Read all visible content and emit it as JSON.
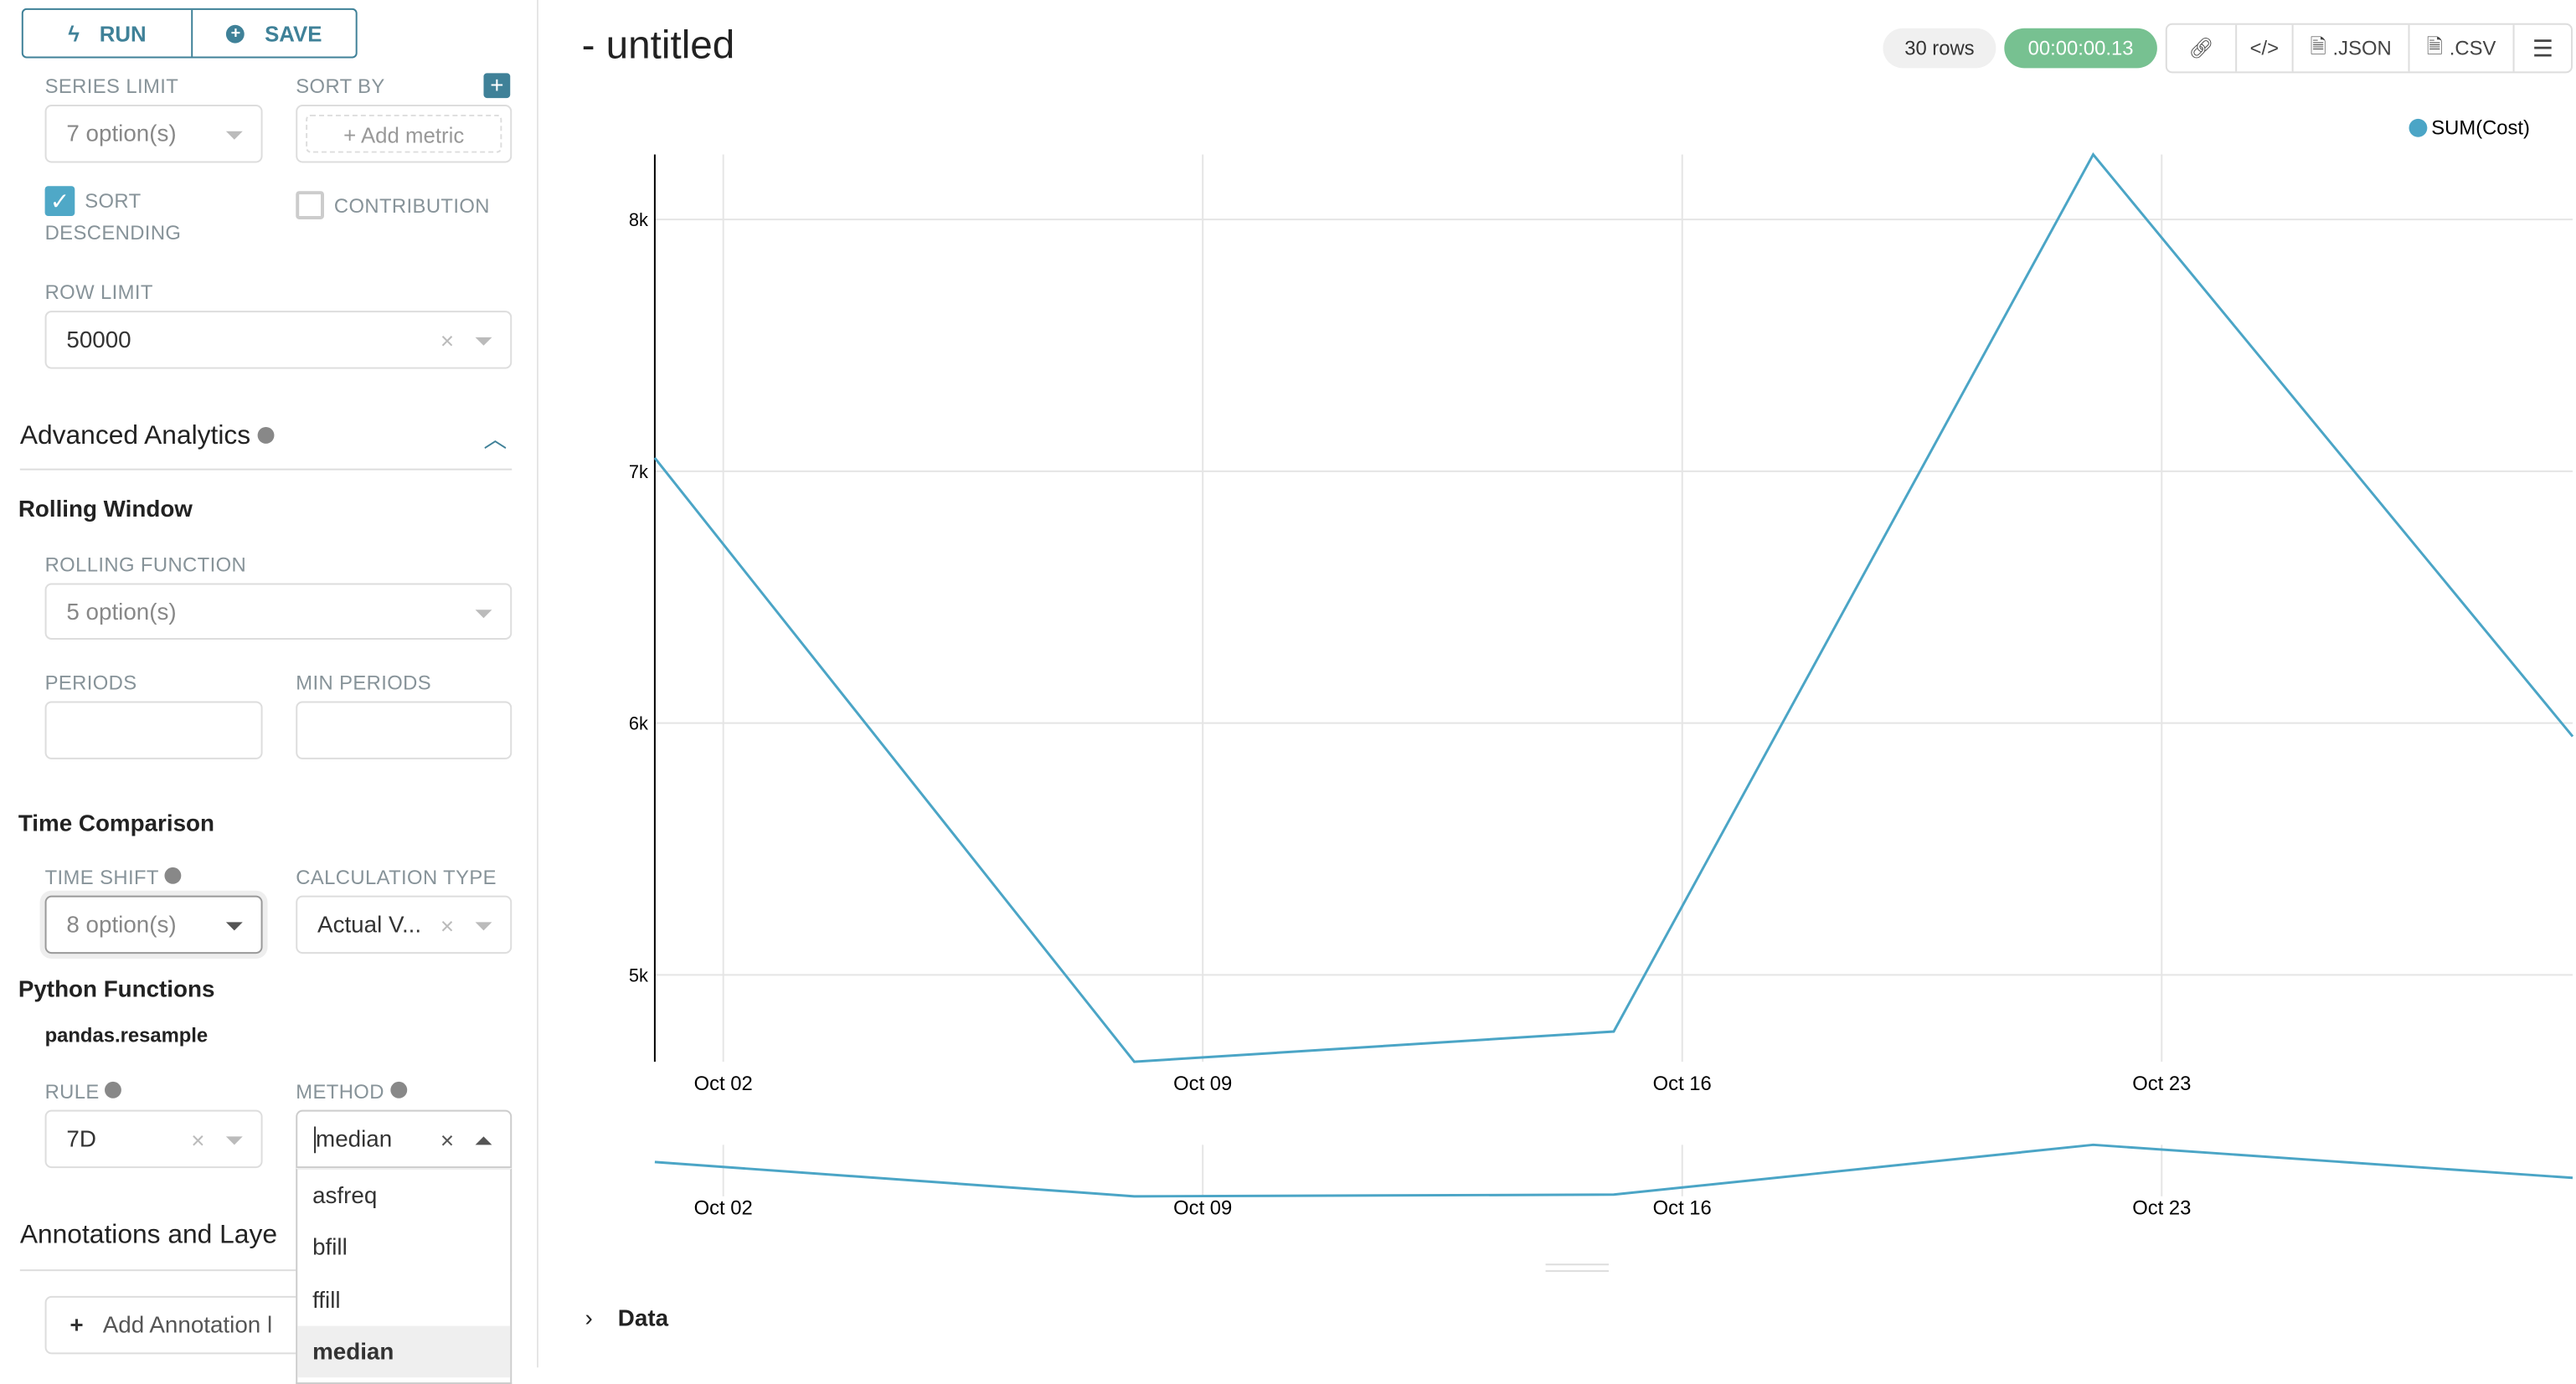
{
  "toolbar": {
    "run": "RUN",
    "save": "SAVE"
  },
  "sidebar": {
    "series_limit": {
      "label": "SERIES LIMIT",
      "value": "7 option(s)"
    },
    "sort_by": {
      "label": "SORT BY",
      "placeholder": "Add metric"
    },
    "sort_descending": {
      "label_1": "SORT",
      "label_2": "DESCENDING",
      "checked": true
    },
    "contribution": {
      "label": "CONTRIBUTION",
      "checked": false
    },
    "row_limit": {
      "label": "ROW LIMIT",
      "value": "50000"
    },
    "advanced_analytics": {
      "title": "Advanced Analytics"
    },
    "rolling_window": {
      "title": "Rolling Window",
      "function_label": "ROLLING FUNCTION",
      "function_value": "5 option(s)",
      "periods_label": "PERIODS",
      "periods_value": "",
      "min_periods_label": "MIN PERIODS",
      "min_periods_value": ""
    },
    "time_comparison": {
      "title": "Time Comparison",
      "time_shift_label": "TIME SHIFT",
      "time_shift_value": "8 option(s)",
      "calc_type_label": "CALCULATION TYPE",
      "calc_type_value": "Actual V..."
    },
    "python_functions": {
      "title": "Python Functions",
      "subtitle": "pandas.resample",
      "rule_label": "RULE",
      "rule_value": "7D",
      "method_label": "METHOD",
      "method_value": "median",
      "method_options": [
        "asfreq",
        "bfill",
        "ffill",
        "median"
      ],
      "method_selected": "median"
    },
    "annotations": {
      "title": "Annotations and Laye",
      "add_button": "Add Annotation l"
    }
  },
  "header": {
    "title": "- untitled",
    "rows_badge": "30 rows",
    "timer_badge": "00:00:00.13",
    "json_button": ".JSON",
    "csv_button": ".CSV"
  },
  "data_section": {
    "label": "Data"
  },
  "colors": {
    "accent": "#3f8198",
    "series": "#4ba5c6",
    "timer": "#77c191",
    "checkbox": "#4fa8c7"
  },
  "chart_data": {
    "type": "line",
    "x": [
      "2019-10-01",
      "2019-10-08",
      "2019-10-15",
      "2019-10-22",
      "2019-10-29"
    ],
    "series": [
      {
        "name": "SUM(Cost)",
        "values": [
          7053,
          4655,
          4775,
          8258,
          5947
        ]
      }
    ],
    "x_ticks": [
      "Oct 02",
      "Oct 09",
      "Oct 16",
      "Oct 23"
    ],
    "y_ticks": [
      "5k",
      "6k",
      "7k",
      "8k"
    ],
    "y_tick_values": [
      5000,
      6000,
      7000,
      8000
    ],
    "ylim": [
      4655,
      8258
    ],
    "legend": "top-right",
    "grid": true,
    "has_range_brush": true
  }
}
